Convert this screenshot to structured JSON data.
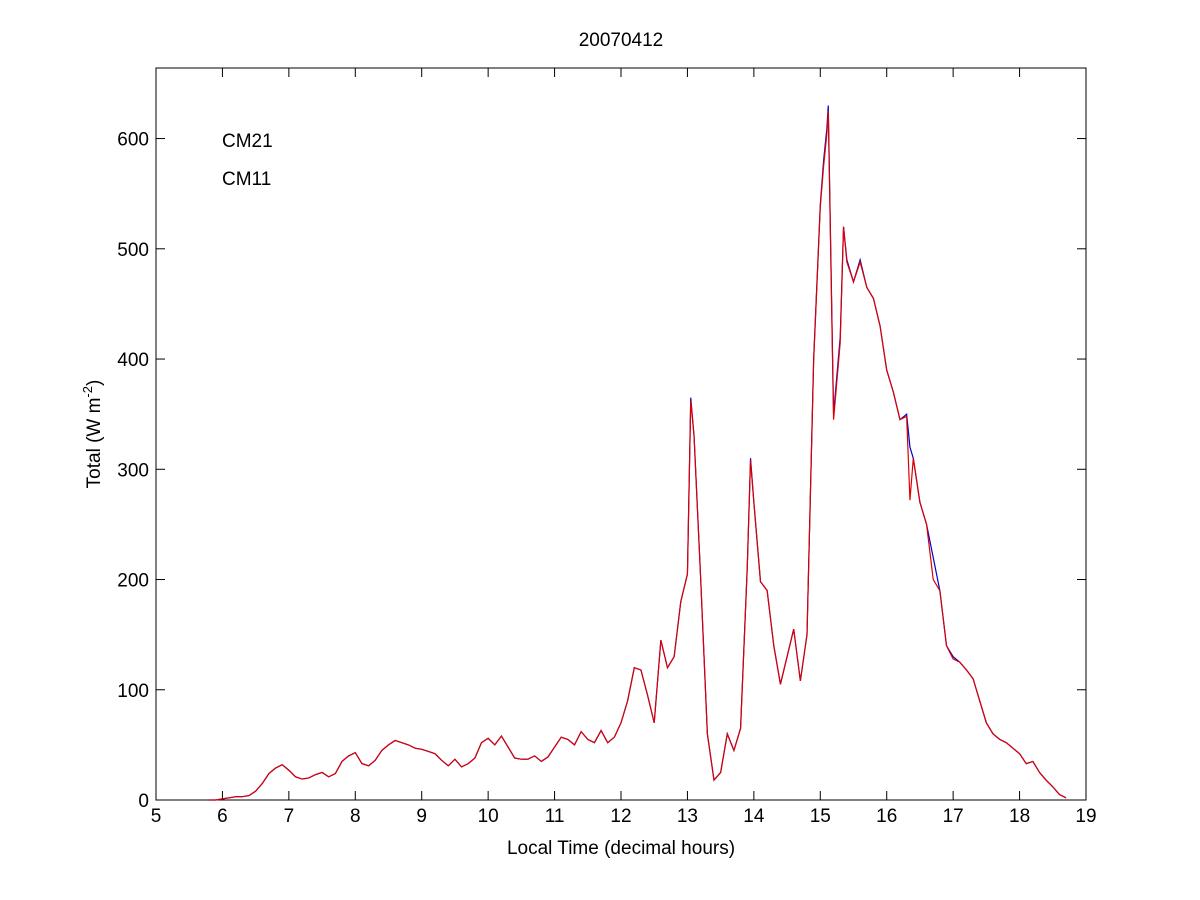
{
  "chart_data": {
    "type": "line",
    "title": "20070412",
    "xlabel": "Local Time (decimal hours)",
    "ylabel": {
      "text": "Total (W m",
      "superscript": "-2",
      "suffix": ")"
    },
    "xlim": [
      5,
      19
    ],
    "xticks": [
      5,
      6,
      7,
      8,
      9,
      10,
      11,
      12,
      13,
      14,
      15,
      16,
      17,
      18,
      19
    ],
    "ylim": [
      0,
      664
    ],
    "yticks": [
      0,
      100,
      200,
      300,
      400,
      500,
      600
    ],
    "grid": false,
    "legend": "upper left",
    "x": [
      5.8,
      5.9,
      6.0,
      6.1,
      6.2,
      6.3,
      6.4,
      6.5,
      6.6,
      6.7,
      6.8,
      6.9,
      7.0,
      7.1,
      7.2,
      7.3,
      7.4,
      7.5,
      7.6,
      7.7,
      7.8,
      7.9,
      8.0,
      8.1,
      8.2,
      8.3,
      8.4,
      8.5,
      8.6,
      8.7,
      8.8,
      8.9,
      9.0,
      9.1,
      9.2,
      9.3,
      9.4,
      9.5,
      9.6,
      9.7,
      9.8,
      9.9,
      10.0,
      10.1,
      10.2,
      10.3,
      10.4,
      10.5,
      10.6,
      10.7,
      10.8,
      10.9,
      11.0,
      11.1,
      11.2,
      11.3,
      11.4,
      11.5,
      11.6,
      11.7,
      11.8,
      11.9,
      12.0,
      12.1,
      12.2,
      12.3,
      12.4,
      12.5,
      12.6,
      12.7,
      12.8,
      12.9,
      13.0,
      13.05,
      13.1,
      13.2,
      13.3,
      13.4,
      13.5,
      13.6,
      13.7,
      13.8,
      13.9,
      13.95,
      14.0,
      14.1,
      14.2,
      14.3,
      14.4,
      14.5,
      14.6,
      14.7,
      14.8,
      14.9,
      15.0,
      15.05,
      15.1,
      15.12,
      15.2,
      15.3,
      15.35,
      15.4,
      15.5,
      15.6,
      15.7,
      15.8,
      15.9,
      16.0,
      16.1,
      16.2,
      16.3,
      16.35,
      16.4,
      16.5,
      16.6,
      16.7,
      16.8,
      16.9,
      17.0,
      17.1,
      17.2,
      17.3,
      17.4,
      17.5,
      17.6,
      17.7,
      17.8,
      17.9,
      18.0,
      18.1,
      18.2,
      18.3,
      18.4,
      18.5,
      18.6,
      18.7
    ],
    "series": [
      {
        "name": "CM21",
        "color": "#0000cc",
        "values": [
          0,
          0,
          1,
          2,
          3,
          3,
          4,
          8,
          15,
          24,
          29,
          32,
          27,
          21,
          19,
          20,
          23,
          25,
          21,
          24,
          35,
          40,
          43,
          33,
          31,
          36,
          45,
          50,
          54,
          52,
          50,
          47,
          46,
          44,
          42,
          36,
          31,
          37,
          30,
          33,
          38,
          52,
          56,
          50,
          58,
          48,
          38,
          37,
          37,
          40,
          35,
          39,
          48,
          57,
          55,
          50,
          62,
          55,
          52,
          63,
          52,
          57,
          70,
          90,
          120,
          118,
          95,
          70,
          145,
          120,
          130,
          180,
          205,
          365,
          330,
          200,
          60,
          18,
          25,
          60,
          45,
          65,
          210,
          310,
          270,
          198,
          190,
          140,
          105,
          130,
          155,
          108,
          150,
          400,
          540,
          580,
          610,
          630,
          350,
          420,
          520,
          490,
          470,
          490,
          465,
          455,
          430,
          390,
          370,
          345,
          350,
          320,
          310,
          270,
          250,
          220,
          190,
          140,
          130,
          125,
          118,
          110,
          90,
          70,
          60,
          55,
          52,
          47,
          42,
          33,
          35,
          25,
          18,
          12,
          5,
          2
        ]
      },
      {
        "name": "CM11",
        "color": "#dd0000",
        "values": [
          0,
          0,
          1,
          2,
          3,
          3,
          4,
          8,
          15,
          24,
          29,
          32,
          27,
          21,
          19,
          20,
          23,
          25,
          21,
          24,
          35,
          40,
          43,
          33,
          31,
          36,
          45,
          50,
          54,
          52,
          50,
          47,
          46,
          44,
          42,
          36,
          31,
          37,
          30,
          33,
          38,
          52,
          56,
          50,
          58,
          48,
          38,
          37,
          37,
          40,
          35,
          39,
          48,
          57,
          55,
          50,
          62,
          55,
          52,
          63,
          52,
          57,
          70,
          90,
          120,
          118,
          95,
          70,
          145,
          120,
          130,
          180,
          205,
          362,
          330,
          200,
          60,
          18,
          25,
          60,
          45,
          65,
          210,
          308,
          270,
          198,
          190,
          140,
          105,
          130,
          155,
          108,
          150,
          398,
          538,
          575,
          605,
          625,
          345,
          415,
          520,
          488,
          470,
          488,
          465,
          455,
          430,
          390,
          370,
          345,
          348,
          272,
          310,
          270,
          250,
          200,
          190,
          140,
          128,
          125,
          118,
          110,
          90,
          70,
          60,
          55,
          52,
          47,
          42,
          33,
          35,
          25,
          18,
          12,
          5,
          2
        ]
      }
    ]
  }
}
